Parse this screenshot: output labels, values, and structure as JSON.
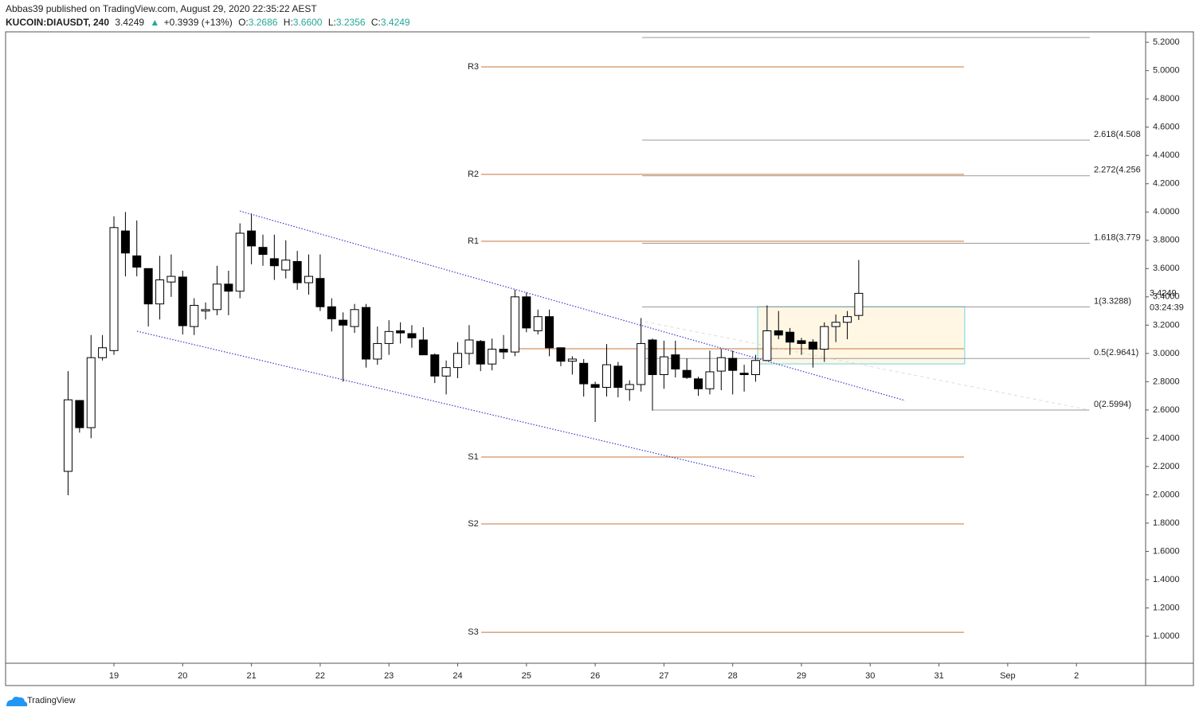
{
  "header": {
    "published": "Abbas39 published on TradingView.com, August 29, 2020 22:35:22 AEST",
    "symbol": "KUCOIN:DIAUSDT, 240",
    "price": "3.4249",
    "arrow": "▲",
    "change": "+0.3939 (+13%)",
    "ohlc": [
      {
        "label": "O:",
        "value": "3.2686"
      },
      {
        "label": "H:",
        "value": "3.6600"
      },
      {
        "label": "L:",
        "value": "3.2356"
      },
      {
        "label": "C:",
        "value": "3.4249"
      }
    ]
  },
  "footer": {
    "brand": "TradingView"
  },
  "chart_data": {
    "type": "candlestick",
    "x": [
      18.333,
      18.5,
      18.667,
      18.833,
      19,
      19.167,
      19.333,
      19.5,
      19.667,
      19.833,
      20,
      20.167,
      20.333,
      20.5,
      20.667,
      20.833,
      21,
      21.167,
      21.333,
      21.5,
      21.667,
      21.833,
      22,
      22.167,
      22.333,
      22.5,
      22.667,
      22.833,
      23,
      23.167,
      23.333,
      23.5,
      23.667,
      23.833,
      24,
      24.167,
      24.333,
      24.5,
      24.667,
      24.833,
      25,
      25.167,
      25.333,
      25.5,
      25.667,
      25.833,
      26,
      26.167,
      26.333,
      26.5,
      26.667,
      26.833,
      27,
      27.167,
      27.333,
      27.5,
      27.667,
      27.833,
      28,
      28.167,
      28.333,
      28.5,
      28.667,
      28.833,
      29,
      29.167,
      29.333,
      29.5,
      29.667,
      29.833
    ],
    "open": [
      2.166,
      2.667,
      2.475,
      2.97,
      3.02,
      3.866,
      3.69,
      3.6,
      3.35,
      3.505,
      3.54,
      3.19,
      3.3,
      3.31,
      3.49,
      3.44,
      3.866,
      3.75,
      3.67,
      3.59,
      3.65,
      3.5,
      3.53,
      3.33,
      3.235,
      3.19,
      3.325,
      2.96,
      3.07,
      3.16,
      3.14,
      3.095,
      2.99,
      2.84,
      2.9,
      3.0,
      3.085,
      2.925,
      3.03,
      3.01,
      3.4,
      3.16,
      3.26,
      3.04,
      2.945,
      2.93,
      2.78,
      2.76,
      2.91,
      2.745,
      2.78,
      3.095,
      2.85,
      2.99,
      2.88,
      2.82,
      2.75,
      2.875,
      2.965,
      2.86,
      2.85,
      2.95,
      3.16,
      3.15,
      3.09,
      3.08,
      3.03,
      3.19,
      3.22,
      3.2686
    ],
    "high": [
      2.875,
      2.67,
      3.13,
      3.13,
      3.97,
      4.0,
      3.94,
      3.6,
      3.69,
      3.7,
      3.585,
      3.39,
      3.36,
      3.62,
      3.585,
      3.92,
      3.99,
      3.84,
      3.84,
      3.8,
      3.725,
      3.7,
      3.7,
      3.39,
      3.29,
      3.35,
      3.35,
      3.19,
      3.235,
      3.22,
      3.2,
      3.185,
      3.0,
      2.95,
      3.08,
      3.2,
      3.095,
      3.105,
      3.13,
      3.45,
      3.43,
      3.31,
      3.31,
      3.04,
      2.98,
      2.96,
      2.8,
      3.066,
      2.94,
      2.81,
      3.25,
      3.105,
      3.09,
      3.09,
      2.965,
      2.835,
      3.02,
      3.03,
      3.02,
      2.92,
      2.99,
      3.34,
      3.3,
      3.18,
      3.11,
      3.1,
      3.22,
      3.275,
      3.3,
      3.66
    ],
    "low": [
      1.997,
      2.44,
      2.4,
      2.95,
      2.99,
      3.545,
      3.545,
      3.19,
      3.24,
      3.4,
      3.134,
      3.13,
      3.24,
      3.27,
      3.27,
      3.39,
      3.63,
      3.62,
      3.52,
      3.53,
      3.45,
      3.415,
      3.3,
      3.155,
      2.8,
      3.145,
      2.9,
      2.92,
      2.99,
      3.07,
      3.04,
      2.99,
      2.79,
      2.71,
      2.825,
      2.92,
      2.875,
      2.88,
      2.96,
      2.98,
      3.15,
      3.134,
      2.98,
      2.91,
      2.85,
      2.695,
      2.515,
      2.695,
      2.69,
      2.665,
      2.73,
      2.595,
      2.75,
      2.83,
      2.82,
      2.7,
      2.71,
      2.74,
      2.71,
      2.73,
      2.8,
      2.95,
      3.1,
      2.99,
      2.99,
      2.9,
      2.94,
      3.08,
      3.1,
      3.2356
    ],
    "close": [
      2.672,
      2.475,
      2.97,
      3.04,
      3.89,
      3.71,
      3.61,
      3.35,
      3.52,
      3.545,
      3.196,
      3.34,
      3.31,
      3.49,
      3.44,
      3.85,
      3.76,
      3.7,
      3.62,
      3.66,
      3.5,
      3.545,
      3.33,
      3.245,
      3.2,
      3.31,
      2.96,
      3.07,
      3.155,
      3.145,
      3.11,
      2.99,
      2.84,
      2.9,
      3.0,
      3.095,
      2.925,
      3.03,
      3.01,
      3.4,
      3.18,
      3.26,
      3.04,
      2.945,
      2.96,
      2.785,
      2.76,
      2.92,
      2.76,
      2.78,
      3.07,
      2.85,
      2.976,
      2.89,
      2.83,
      2.75,
      2.87,
      2.97,
      2.88,
      2.85,
      2.95,
      3.16,
      3.13,
      3.08,
      3.07,
      3.03,
      3.19,
      3.22,
      3.26,
      3.4249
    ],
    "up_color": "#ffffff",
    "down_color": "#000000",
    "xlim": [
      17.424,
      34.006
    ],
    "xticks": [
      19,
      20,
      21,
      22,
      23,
      24,
      25,
      26,
      27,
      28,
      29,
      30,
      31,
      {
        "value": 32,
        "label": "Sep"
      },
      {
        "value": 33,
        "label": "2"
      }
    ],
    "ylim": [
      0.809,
      5.274
    ],
    "yticks": [
      {
        "value": 1.0,
        "label": "1.0000"
      },
      {
        "value": 1.2,
        "label": "1.2000"
      },
      {
        "value": 1.4,
        "label": "1.4000"
      },
      {
        "value": 1.6,
        "label": "1.6000"
      },
      {
        "value": 1.8,
        "label": "1.8000"
      },
      {
        "value": 2.0,
        "label": "2.0000"
      },
      {
        "value": 2.2,
        "label": "2.2000"
      },
      {
        "value": 2.4,
        "label": "2.4000"
      },
      {
        "value": 2.6,
        "label": "2.6000"
      },
      {
        "value": 2.8,
        "label": "2.8000"
      },
      {
        "value": 3.0,
        "label": "3.0000"
      },
      {
        "value": 3.2,
        "label": "3.2000"
      },
      {
        "value": 3.4,
        "label": "3.4000"
      },
      {
        "value": 3.6,
        "label": "3.6000"
      },
      {
        "value": 3.8,
        "label": "3.8000"
      },
      {
        "value": 4.0,
        "label": "4.0000"
      },
      {
        "value": 4.2,
        "label": "4.2000"
      },
      {
        "value": 4.4,
        "label": "4.4000"
      },
      {
        "value": 4.6,
        "label": "4.6000"
      },
      {
        "value": 4.8,
        "label": "4.8000"
      },
      {
        "value": 5.0,
        "label": "5.0000"
      },
      {
        "value": 5.2,
        "label": "5.2000"
      }
    ],
    "countdown": "03:24:39",
    "pivot_color": "#c8753a",
    "pivots": [
      {
        "label": "R3",
        "value": 5.026,
        "x": [
          24.342,
          31.364
        ]
      },
      {
        "label": "R2",
        "value": 4.266,
        "x": [
          24.342,
          31.364
        ]
      },
      {
        "label": "R1",
        "value": 3.793,
        "x": [
          24.342,
          31.364
        ]
      },
      {
        "value": 3.033,
        "x": [
          24.875,
          31.364
        ]
      },
      {
        "label": "S1",
        "value": 2.267,
        "x": [
          24.342,
          31.364
        ]
      },
      {
        "label": "S2",
        "value": 1.794,
        "x": [
          24.342,
          31.364
        ]
      },
      {
        "label": "S3",
        "value": 1.028,
        "x": [
          24.342,
          31.364
        ]
      }
    ],
    "fib_color": "#9a9a9a",
    "fibs": [
      {
        "value": 5.234,
        "x": [
          26.683,
          33.195
        ]
      },
      {
        "label": "2.618(4.508",
        "value": 4.508,
        "x": [
          26.683,
          33.195
        ]
      },
      {
        "label": "2.272(4.256",
        "value": 4.256,
        "x": [
          26.683,
          33.195
        ]
      },
      {
        "label": "1.618(3.779",
        "value": 3.779,
        "x": [
          26.683,
          33.195
        ]
      },
      {
        "label": "1(3.3288)",
        "value": 3.3288,
        "x": [
          26.683,
          33.195
        ]
      },
      {
        "label": "0.5(2.9641)",
        "value": 2.9641,
        "x": [
          26.683,
          33.195
        ]
      },
      {
        "label": "0(2.5994)",
        "value": 2.5994,
        "x": [
          26.845,
          33.195
        ]
      }
    ],
    "channel_color": "#3a3ad0",
    "trendlines": [
      {
        "x": [
          20.831,
          30.506
        ],
        "y": [
          4.007,
          2.667
        ]
      },
      {
        "x": [
          19.336,
          28.34
        ],
        "y": [
          3.157,
          2.126
        ]
      }
    ],
    "faint_trendline": {
      "x": [
        26.729,
        33.195
      ],
      "y": [
        3.224,
        2.599
      ]
    },
    "box": {
      "x": [
        28.363,
        31.375
      ],
      "y": [
        3.331,
        2.926
      ]
    }
  }
}
